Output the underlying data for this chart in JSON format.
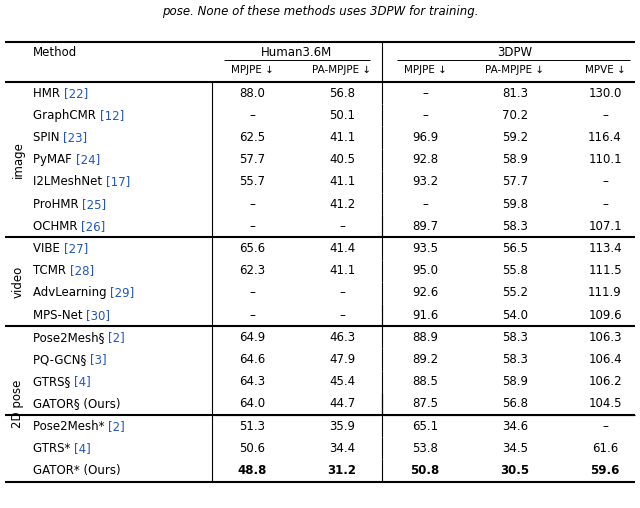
{
  "title_text": "pose. None of these methods uses 3DPW for training.",
  "col_headers": [
    "MPJPE ↓",
    "PA-MPJPE ↓",
    "MPJPE ↓",
    "PA-MPJPE ↓",
    "MPVE ↓"
  ],
  "rows": [
    {
      "method": "HMR",
      "ref": "[22]",
      "vals": [
        "88.0",
        "56.8",
        "–",
        "81.3",
        "130.0"
      ],
      "bold": [
        false,
        false,
        false,
        false,
        false
      ],
      "group": "image"
    },
    {
      "method": "GraphCMR",
      "ref": "[12]",
      "vals": [
        "–",
        "50.1",
        "–",
        "70.2",
        "–"
      ],
      "bold": [
        false,
        false,
        false,
        false,
        false
      ],
      "group": "image"
    },
    {
      "method": "SPIN",
      "ref": "[23]",
      "vals": [
        "62.5",
        "41.1",
        "96.9",
        "59.2",
        "116.4"
      ],
      "bold": [
        false,
        false,
        false,
        false,
        false
      ],
      "group": "image"
    },
    {
      "method": "PyMAF",
      "ref": "[24]",
      "vals": [
        "57.7",
        "40.5",
        "92.8",
        "58.9",
        "110.1"
      ],
      "bold": [
        false,
        false,
        false,
        false,
        false
      ],
      "group": "image"
    },
    {
      "method": "I2LMeshNet",
      "ref": "[17]",
      "vals": [
        "55.7",
        "41.1",
        "93.2",
        "57.7",
        "–"
      ],
      "bold": [
        false,
        false,
        false,
        false,
        false
      ],
      "group": "image"
    },
    {
      "method": "ProHMR",
      "ref": "[25]",
      "vals": [
        "–",
        "41.2",
        "–",
        "59.8",
        "–"
      ],
      "bold": [
        false,
        false,
        false,
        false,
        false
      ],
      "group": "image"
    },
    {
      "method": "OCHMR",
      "ref": "[26]",
      "vals": [
        "–",
        "–",
        "89.7",
        "58.3",
        "107.1"
      ],
      "bold": [
        false,
        false,
        false,
        false,
        false
      ],
      "group": "image"
    },
    {
      "method": "VIBE",
      "ref": "[27]",
      "vals": [
        "65.6",
        "41.4",
        "93.5",
        "56.5",
        "113.4"
      ],
      "bold": [
        false,
        false,
        false,
        false,
        false
      ],
      "group": "video"
    },
    {
      "method": "TCMR",
      "ref": "[28]",
      "vals": [
        "62.3",
        "41.1",
        "95.0",
        "55.8",
        "111.5"
      ],
      "bold": [
        false,
        false,
        false,
        false,
        false
      ],
      "group": "video"
    },
    {
      "method": "AdvLearning",
      "ref": "[29]",
      "vals": [
        "–",
        "–",
        "92.6",
        "55.2",
        "111.9"
      ],
      "bold": [
        false,
        false,
        false,
        false,
        false
      ],
      "group": "video"
    },
    {
      "method": "MPS-Net",
      "ref": "[30]",
      "vals": [
        "–",
        "–",
        "91.6",
        "54.0",
        "109.6"
      ],
      "bold": [
        false,
        false,
        false,
        false,
        false
      ],
      "group": "video"
    },
    {
      "method": "Pose2Mesh§",
      "ref": "[2]",
      "vals": [
        "64.9",
        "46.3",
        "88.9",
        "58.3",
        "106.3"
      ],
      "bold": [
        false,
        false,
        false,
        false,
        false
      ],
      "group": "2D pose"
    },
    {
      "method": "PQ-GCN§",
      "ref": "[3]",
      "vals": [
        "64.6",
        "47.9",
        "89.2",
        "58.3",
        "106.4"
      ],
      "bold": [
        false,
        false,
        false,
        false,
        false
      ],
      "group": "2D pose"
    },
    {
      "method": "GTRS§",
      "ref": "[4]",
      "vals": [
        "64.3",
        "45.4",
        "88.5",
        "58.9",
        "106.2"
      ],
      "bold": [
        false,
        false,
        false,
        false,
        false
      ],
      "group": "2D pose"
    },
    {
      "method": "GATOR§ (Ours)",
      "ref": "",
      "vals": [
        "64.0",
        "44.7",
        "87.5",
        "56.8",
        "104.5"
      ],
      "bold": [
        false,
        false,
        false,
        false,
        false
      ],
      "group": "2D pose"
    },
    {
      "method": "Pose2Mesh*",
      "ref": "[2]",
      "vals": [
        "51.3",
        "35.9",
        "65.1",
        "34.6",
        "–"
      ],
      "bold": [
        false,
        false,
        false,
        false,
        false
      ],
      "group": "2D pose*"
    },
    {
      "method": "GTRS*",
      "ref": "[4]",
      "vals": [
        "50.6",
        "34.4",
        "53.8",
        "34.5",
        "61.6"
      ],
      "bold": [
        false,
        false,
        false,
        false,
        false
      ],
      "group": "2D pose*"
    },
    {
      "method": "GATOR* (Ours)",
      "ref": "",
      "vals": [
        "48.8",
        "31.2",
        "50.8",
        "30.5",
        "59.6"
      ],
      "bold": [
        true,
        true,
        true,
        true,
        true
      ],
      "group": "2D pose*"
    }
  ],
  "group_separators_after": [
    6,
    10,
    14
  ],
  "sub_separator_after": 14,
  "ref_color": "#2255bb",
  "bg_color": "#ffffff"
}
